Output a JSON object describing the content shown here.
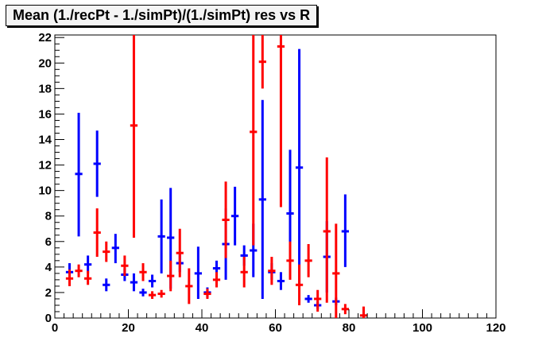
{
  "chart_data": {
    "type": "scatter",
    "title": "Mean (1./recPt - 1./simPt)/(1./simPt) res vs R",
    "xlabel": "",
    "ylabel": "",
    "xlim": [
      0,
      120
    ],
    "ylim": [
      0,
      22.2
    ],
    "x_ticks": [
      0,
      20,
      40,
      60,
      80,
      100,
      120
    ],
    "y_ticks": [
      0,
      2,
      4,
      6,
      8,
      10,
      12,
      14,
      16,
      18,
      20,
      22
    ],
    "grid": false,
    "legend": "none",
    "series": [
      {
        "color": "#0000ff",
        "points": [
          {
            "x": 4,
            "y": 3.6,
            "lo": 2.8,
            "hi": 4.3,
            "xerr": 1
          },
          {
            "x": 6.5,
            "y": 11.3,
            "lo": 6.4,
            "hi": 16.1,
            "xerr": 1
          },
          {
            "x": 9,
            "y": 4.2,
            "lo": 3.5,
            "hi": 4.9,
            "xerr": 1
          },
          {
            "x": 11.5,
            "y": 12.1,
            "lo": 9.5,
            "hi": 14.7,
            "xerr": 1
          },
          {
            "x": 14,
            "y": 2.6,
            "lo": 2.1,
            "hi": 3.1,
            "xerr": 1
          },
          {
            "x": 16.5,
            "y": 5.5,
            "lo": 4.3,
            "hi": 6.6,
            "xerr": 1
          },
          {
            "x": 19,
            "y": 3.4,
            "lo": 2.9,
            "hi": 3.9,
            "xerr": 1
          },
          {
            "x": 21.5,
            "y": 2.8,
            "lo": 2.1,
            "hi": 3.5,
            "xerr": 1
          },
          {
            "x": 24,
            "y": 2.0,
            "lo": 1.7,
            "hi": 2.3,
            "xerr": 1
          },
          {
            "x": 26.5,
            "y": 2.9,
            "lo": 2.4,
            "hi": 3.4,
            "xerr": 1
          },
          {
            "x": 29,
            "y": 6.4,
            "lo": 3.5,
            "hi": 9.3,
            "xerr": 1
          },
          {
            "x": 31.5,
            "y": 6.3,
            "lo": 2.3,
            "hi": 10.2,
            "xerr": 1
          },
          {
            "x": 34,
            "y": 4.3,
            "lo": 3.6,
            "hi": 5.0,
            "xerr": 1
          },
          {
            "x": 39,
            "y": 3.5,
            "lo": 1.5,
            "hi": 5.6,
            "xerr": 1
          },
          {
            "x": 41.5,
            "y": 2.0,
            "lo": 1.6,
            "hi": 2.4,
            "xerr": 1
          },
          {
            "x": 44,
            "y": 3.9,
            "lo": 3.4,
            "hi": 4.5,
            "xerr": 1
          },
          {
            "x": 46.5,
            "y": 5.8,
            "lo": 3.0,
            "hi": 8.6,
            "xerr": 1
          },
          {
            "x": 49,
            "y": 8.0,
            "lo": 5.7,
            "hi": 10.3,
            "xerr": 1
          },
          {
            "x": 51.5,
            "y": 4.9,
            "lo": 4.1,
            "hi": 5.7,
            "xerr": 1
          },
          {
            "x": 54,
            "y": 5.3,
            "lo": 3.2,
            "hi": 7.4,
            "xerr": 1
          },
          {
            "x": 56.5,
            "y": 9.3,
            "lo": 1.5,
            "hi": 17.1,
            "xerr": 1
          },
          {
            "x": 59,
            "y": 3.6,
            "lo": 3.0,
            "hi": 4.3,
            "xerr": 1
          },
          {
            "x": 61.5,
            "y": 2.9,
            "lo": 2.2,
            "hi": 3.6,
            "xerr": 1
          },
          {
            "x": 64,
            "y": 8.2,
            "lo": 3.2,
            "hi": 13.2,
            "xerr": 1
          },
          {
            "x": 66.5,
            "y": 11.8,
            "lo": 2.5,
            "hi": 21.1,
            "xerr": 1
          },
          {
            "x": 69,
            "y": 1.5,
            "lo": 1.2,
            "hi": 1.8,
            "xerr": 1
          },
          {
            "x": 71.5,
            "y": 1.0,
            "lo": 0.7,
            "hi": 1.3,
            "xerr": 1
          },
          {
            "x": 74,
            "y": 4.8,
            "lo": 2.0,
            "hi": 7.6,
            "xerr": 1
          },
          {
            "x": 76.5,
            "y": 1.3,
            "lo": 1.0,
            "hi": 1.6,
            "xerr": 1
          },
          {
            "x": 79,
            "y": 6.8,
            "lo": 4.0,
            "hi": 9.7,
            "xerr": 1
          }
        ]
      },
      {
        "color": "#ff0000",
        "points": [
          {
            "x": 4,
            "y": 3.1,
            "lo": 2.5,
            "hi": 3.8,
            "xerr": 1
          },
          {
            "x": 6.5,
            "y": 3.7,
            "lo": 3.2,
            "hi": 4.2,
            "xerr": 1
          },
          {
            "x": 9,
            "y": 3.1,
            "lo": 2.6,
            "hi": 3.7,
            "xerr": 1
          },
          {
            "x": 11.5,
            "y": 6.7,
            "lo": 4.8,
            "hi": 8.6,
            "xerr": 1
          },
          {
            "x": 14,
            "y": 5.2,
            "lo": 4.4,
            "hi": 6.0,
            "xerr": 1
          },
          {
            "x": 19,
            "y": 4.1,
            "lo": 3.3,
            "hi": 4.9,
            "xerr": 1
          },
          {
            "x": 21.5,
            "y": 15.1,
            "lo": 6.3,
            "hi": 22.2,
            "xerr": 1
          },
          {
            "x": 24,
            "y": 3.6,
            "lo": 2.9,
            "hi": 4.3,
            "xerr": 1
          },
          {
            "x": 26.5,
            "y": 1.8,
            "lo": 1.5,
            "hi": 2.1,
            "xerr": 1
          },
          {
            "x": 29,
            "y": 1.9,
            "lo": 1.6,
            "hi": 2.2,
            "xerr": 1
          },
          {
            "x": 31.5,
            "y": 3.3,
            "lo": 2.1,
            "hi": 4.5,
            "xerr": 1
          },
          {
            "x": 34,
            "y": 5.1,
            "lo": 3.2,
            "hi": 7.0,
            "xerr": 1
          },
          {
            "x": 36.5,
            "y": 2.5,
            "lo": 1.1,
            "hi": 3.9,
            "xerr": 1
          },
          {
            "x": 41.5,
            "y": 1.9,
            "lo": 1.5,
            "hi": 2.3,
            "xerr": 1
          },
          {
            "x": 44,
            "y": 3.0,
            "lo": 2.4,
            "hi": 3.6,
            "xerr": 1
          },
          {
            "x": 46.5,
            "y": 7.7,
            "lo": 4.7,
            "hi": 10.7,
            "xerr": 1
          },
          {
            "x": 51.5,
            "y": 3.6,
            "lo": 2.4,
            "hi": 4.8,
            "xerr": 1
          },
          {
            "x": 54,
            "y": 14.6,
            "lo": 5.7,
            "hi": 22.2,
            "xerr": 1
          },
          {
            "x": 56.5,
            "y": 20.1,
            "lo": 18.0,
            "hi": 22.2,
            "xerr": 1
          },
          {
            "x": 59,
            "y": 3.7,
            "lo": 2.6,
            "hi": 4.8,
            "xerr": 1
          },
          {
            "x": 61.5,
            "y": 21.3,
            "lo": 8.7,
            "hi": 22.2,
            "xerr": 1
          },
          {
            "x": 64,
            "y": 4.5,
            "lo": 3.0,
            "hi": 6.0,
            "xerr": 1
          },
          {
            "x": 66.5,
            "y": 2.6,
            "lo": 1.0,
            "hi": 4.2,
            "xerr": 1
          },
          {
            "x": 69,
            "y": 4.5,
            "lo": 3.2,
            "hi": 5.8,
            "xerr": 1
          },
          {
            "x": 71.5,
            "y": 1.5,
            "lo": 0.5,
            "hi": 2.2,
            "xerr": 1
          },
          {
            "x": 74,
            "y": 6.8,
            "lo": 1.2,
            "hi": 12.6,
            "xerr": 1
          },
          {
            "x": 76.5,
            "y": 3.5,
            "lo": 0.0,
            "hi": 7.4,
            "xerr": 1
          },
          {
            "x": 79,
            "y": 0.7,
            "lo": 0.3,
            "hi": 1.1,
            "xerr": 1
          },
          {
            "x": 84,
            "y": 0.2,
            "lo": 0.0,
            "hi": 0.9,
            "xerr": 1
          }
        ]
      }
    ]
  }
}
